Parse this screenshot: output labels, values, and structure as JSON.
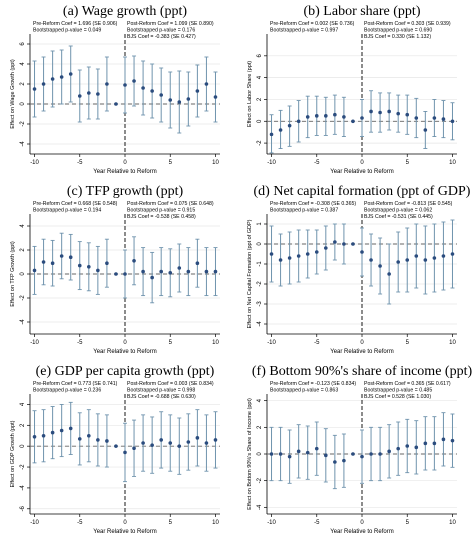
{
  "colors": {
    "marker": "#2b4c7e",
    "errorbar": "#6f93ad",
    "axis": "#000000",
    "grid": "#e6e6e6",
    "zero_line": "#666666",
    "reform_line": "#000000",
    "background": "#ffffff"
  },
  "chart_data": [
    {
      "type": "scatter",
      "title": "(a) Wage growth (ppt)",
      "xlabel": "Year Relative to Reform",
      "ylabel": "Effect on Wage Growth (ppt)",
      "xlim": [
        -10.5,
        10.5
      ],
      "ylim": [
        -5,
        7
      ],
      "xticks": [
        -10,
        -5,
        0,
        5,
        10
      ],
      "yticks": [
        -4,
        -2,
        0,
        2,
        4,
        6
      ],
      "grid": true,
      "reform_line_x": 0,
      "annotations": {
        "pre_coef": "Pre-Reform Coef = 1.696 (SE 0.906)",
        "pre_p": "Bootstrapped p-value = 0.049",
        "post_coef": "Post-Reform Coef = 1.099 (SE 0.890)",
        "post_p": "Bootstrapped p-value = 0.176",
        "bjs": "BJS Coef = -0.383 (SE 0.427)"
      },
      "x": [
        -10,
        -9,
        -8,
        -7,
        -6,
        -5,
        -4,
        -3,
        -2,
        -1,
        0,
        1,
        2,
        3,
        4,
        5,
        6,
        7,
        8,
        9,
        10
      ],
      "y": [
        1.5,
        2.0,
        2.5,
        2.7,
        3.0,
        0.8,
        1.1,
        1.0,
        2.0,
        0.0,
        1.9,
        2.3,
        1.6,
        1.3,
        0.9,
        0.4,
        0.2,
        0.5,
        1.3,
        2.0,
        0.7
      ],
      "lo": [
        -1.3,
        -0.7,
        -0.3,
        0.0,
        0.2,
        -1.8,
        -1.5,
        -1.5,
        -0.7,
        0.0,
        -0.9,
        -0.2,
        -1.1,
        -1.4,
        -1.8,
        -2.4,
        -2.9,
        -2.2,
        -1.3,
        -0.7,
        -1.8
      ],
      "hi": [
        4.3,
        4.7,
        5.3,
        5.4,
        5.8,
        3.4,
        3.7,
        3.5,
        4.7,
        0.0,
        4.7,
        4.8,
        4.3,
        4.0,
        3.6,
        3.2,
        3.3,
        3.2,
        3.9,
        4.7,
        3.2
      ]
    },
    {
      "type": "scatter",
      "title": "(b) Labor share (ppt)",
      "xlabel": "Year Relative to Reform",
      "ylabel": "Effect on Labor Share (ppt)",
      "xlim": [
        -10.5,
        10.5
      ],
      "ylim": [
        -3,
        8
      ],
      "xticks": [
        -10,
        -5,
        0,
        5,
        10
      ],
      "yticks": [
        -2,
        0,
        2,
        4,
        6
      ],
      "grid": true,
      "reform_line_x": 0,
      "annotations": {
        "pre_coef": "Pre-Reform Coef = 0.002 (SE 0.736)",
        "pre_p": "Bootstrapped p-value = 0.997",
        "post_coef": "Post-Reform Coef = 0.303 (SE 0.939)",
        "post_p": "Bootstrapped p-value = 0.690",
        "bjs": "BJS Coef = 0.330 (SE 1.132)"
      },
      "x": [
        -10,
        -9,
        -8,
        -7,
        -6,
        -5,
        -4,
        -3,
        -2,
        -1,
        0,
        1,
        2,
        3,
        4,
        5,
        6,
        7,
        8,
        9,
        10
      ],
      "y": [
        -1.2,
        -0.8,
        -0.4,
        0.0,
        0.4,
        0.5,
        0.5,
        0.6,
        0.4,
        0.0,
        0.3,
        0.9,
        0.8,
        0.9,
        0.7,
        0.6,
        0.3,
        -0.8,
        0.3,
        0.2,
        0.0
      ],
      "lo": [
        -2.9,
        -2.5,
        -2.3,
        -1.9,
        -1.5,
        -1.3,
        -1.3,
        -1.2,
        -1.4,
        0.0,
        -1.4,
        -1.0,
        -1.0,
        -0.8,
        -1.0,
        -1.2,
        -1.5,
        -2.5,
        -1.4,
        -1.5,
        -1.7
      ],
      "hi": [
        0.6,
        1.0,
        1.4,
        1.9,
        2.3,
        2.3,
        2.2,
        2.4,
        2.2,
        0.0,
        2.0,
        2.8,
        2.6,
        2.6,
        2.4,
        2.4,
        2.1,
        0.9,
        2.0,
        1.9,
        1.7
      ]
    },
    {
      "type": "scatter",
      "title": "(c) TFP growth (ppt)",
      "xlabel": "Year Relative to Reform",
      "ylabel": "Effect on TFP Growth (ppt)",
      "xlim": [
        -10.5,
        10.5
      ],
      "ylim": [
        -5,
        5
      ],
      "xticks": [
        -10,
        -5,
        0,
        5,
        10
      ],
      "yticks": [
        -4,
        -2,
        0,
        2,
        4
      ],
      "grid": true,
      "reform_line_x": 0,
      "annotations": {
        "pre_coef": "Pre-Reform Coef = 0.668 (SE 0.548)",
        "pre_p": "Bootstrapped p-value = 0.194",
        "post_coef": "Post-Reform Coef = 0.075 (SE 0.648)",
        "post_p": "Bootstrapped p-value = 0.915",
        "bjs": "BJS Coef = -0.538 (SE 0.458)"
      },
      "x": [
        -10,
        -9,
        -8,
        -7,
        -6,
        -5,
        -4,
        -3,
        -2,
        -1,
        0,
        1,
        2,
        3,
        4,
        5,
        6,
        7,
        8,
        9,
        10
      ],
      "y": [
        0.3,
        1.0,
        0.9,
        1.5,
        1.4,
        0.7,
        0.6,
        0.3,
        0.9,
        0.0,
        0.0,
        1.1,
        0.2,
        -0.3,
        0.2,
        0.1,
        0.5,
        0.2,
        0.9,
        0.2,
        0.2
      ],
      "lo": [
        -1.7,
        -0.9,
        -1.0,
        -0.4,
        -0.5,
        -1.3,
        -1.4,
        -1.7,
        -1.1,
        0.0,
        -2.0,
        -0.9,
        -1.8,
        -2.4,
        -1.8,
        -1.9,
        -1.5,
        -1.8,
        -1.1,
        -1.8,
        -1.8
      ],
      "hi": [
        2.3,
        2.9,
        2.8,
        3.4,
        3.3,
        2.7,
        2.6,
        2.3,
        2.9,
        0.0,
        2.0,
        3.1,
        2.2,
        1.8,
        2.2,
        2.1,
        2.5,
        2.2,
        2.9,
        2.2,
        2.2
      ]
    },
    {
      "type": "scatter",
      "title": "(d) Net capital formation (ppt of GDP)",
      "xlabel": "Year Relative to Reform",
      "ylabel": "Effect on Net Capital Formation (ppt of GDP)",
      "xlim": [
        -10.5,
        10.5
      ],
      "ylim": [
        -4.5,
        1.5
      ],
      "xticks": [
        -10,
        -5,
        0,
        5,
        10
      ],
      "yticks": [
        -4,
        -3,
        -2,
        -1,
        0,
        1
      ],
      "grid": true,
      "reform_line_x": 0,
      "annotations": {
        "pre_coef": "Pre-Reform Coef = -0.308 (SE 0.365)",
        "pre_p": "Bootstrapped p-value = 0.387",
        "post_coef": "Post-Reform Coef = -0.813 (SE 0.545)",
        "post_p": "Bootstrapped p-value = 0.062",
        "bjs": "BJS Coef = -0.531 (SE 0.445)"
      },
      "x": [
        -10,
        -9,
        -8,
        -7,
        -6,
        -5,
        -4,
        -3,
        -2,
        -1,
        0,
        1,
        2,
        3,
        4,
        5,
        6,
        7,
        8,
        9,
        10
      ],
      "y": [
        -0.5,
        -0.8,
        -0.7,
        -0.6,
        -0.5,
        -0.4,
        -0.2,
        0.1,
        0.0,
        0.0,
        -0.4,
        -0.8,
        -1.1,
        -1.5,
        -0.9,
        -0.8,
        -0.6,
        -0.8,
        -0.7,
        -0.6,
        -0.5
      ],
      "lo": [
        -1.9,
        -2.1,
        -2.0,
        -1.9,
        -1.7,
        -1.5,
        -1.3,
        -0.8,
        -1.0,
        0.0,
        -1.6,
        -2.1,
        -2.5,
        -3.0,
        -2.4,
        -2.4,
        -2.2,
        -2.5,
        -2.4,
        -2.3,
        -2.2
      ],
      "hi": [
        0.9,
        0.5,
        0.6,
        0.7,
        0.7,
        0.7,
        0.9,
        1.0,
        1.0,
        0.0,
        0.8,
        0.5,
        0.3,
        0.0,
        0.6,
        0.8,
        1.0,
        0.9,
        1.0,
        1.1,
        1.2
      ]
    },
    {
      "type": "scatter",
      "title": "(e) GDP per capita growth (ppt)",
      "xlabel": "Year Relative to Reform",
      "ylabel": "Effect on GDP Growth (ppt)",
      "xlim": [
        -10.5,
        10.5
      ],
      "ylim": [
        -6.5,
        5
      ],
      "xticks": [
        -10,
        -5,
        0,
        5,
        10
      ],
      "yticks": [
        -6,
        -4,
        -2,
        0,
        2,
        4
      ],
      "grid": true,
      "reform_line_x": 0,
      "annotations": {
        "pre_coef": "Pre-Reform Coef = 0.773 (SE 0.741)",
        "pre_p": "Bootstrapped p-value = 0.236",
        "post_coef": "Post-Reform Coef = 0.003 (SE 0.834)",
        "post_p": "Bootstrapped p-value = 0.998",
        "bjs": "BJS Coef = -0.688 (SE 0.630)"
      },
      "x": [
        -10,
        -9,
        -8,
        -7,
        -6,
        -5,
        -4,
        -3,
        -2,
        -1,
        0,
        1,
        2,
        3,
        4,
        5,
        6,
        7,
        8,
        9,
        10
      ],
      "y": [
        0.9,
        1.0,
        1.3,
        1.5,
        1.7,
        0.7,
        1.0,
        0.6,
        0.5,
        0.0,
        -0.6,
        -0.2,
        0.3,
        0.1,
        0.6,
        0.3,
        0.0,
        0.4,
        0.8,
        0.3,
        0.6
      ],
      "lo": [
        -1.6,
        -1.5,
        -1.2,
        -1.0,
        -0.8,
        -1.8,
        -1.5,
        -1.9,
        -2.0,
        0.0,
        -3.4,
        -2.9,
        -2.4,
        -2.6,
        -2.1,
        -2.4,
        -2.7,
        -2.3,
        -1.9,
        -2.4,
        -2.1
      ],
      "hi": [
        3.4,
        3.5,
        3.8,
        4.0,
        4.2,
        3.2,
        3.5,
        3.1,
        3.0,
        0.0,
        2.2,
        2.5,
        3.0,
        2.8,
        3.3,
        3.0,
        2.7,
        3.1,
        3.5,
        3.0,
        3.3
      ]
    },
    {
      "type": "scatter",
      "title": "(f) Bottom 90%'s share of income (ppt)",
      "xlabel": "Year Relative to Reform",
      "ylabel": "Effect on Bottom 90%'s Share of Income (ppt)",
      "xlim": [
        -10.5,
        10.5
      ],
      "ylim": [
        -4.5,
        4.5
      ],
      "xticks": [
        -10,
        -5,
        0,
        5,
        10
      ],
      "yticks": [
        -4,
        -2,
        0,
        2,
        4
      ],
      "grid": true,
      "reform_line_x": 0,
      "annotations": {
        "pre_coef": "Pre-Reform Coef = -0.123 (SE 0.834)",
        "pre_p": "Bootstrapped p-value = 0.863",
        "post_coef": "Post-Reform Coef = 0.365 (SE 0.617)",
        "post_p": "Bootstrapped p-value = 0.485",
        "bjs": "BJS Coef = 0.528 (SE 1.030)"
      },
      "x": [
        -10,
        -9,
        -8,
        -7,
        -6,
        -5,
        -4,
        -3,
        -2,
        -1,
        0,
        1,
        2,
        3,
        4,
        5,
        6,
        7,
        8,
        9,
        10
      ],
      "y": [
        0.0,
        0.0,
        -0.2,
        0.2,
        0.1,
        0.4,
        -0.1,
        -0.6,
        -0.5,
        0.0,
        -0.2,
        0.0,
        0.0,
        0.2,
        0.4,
        0.6,
        0.5,
        0.8,
        0.8,
        1.1,
        1.0
      ],
      "lo": [
        -2.0,
        -2.0,
        -2.2,
        -1.8,
        -1.9,
        -1.6,
        -2.1,
        -2.6,
        -2.5,
        0.0,
        -2.2,
        -2.0,
        -2.0,
        -1.8,
        -1.6,
        -1.4,
        -1.5,
        -1.2,
        -1.2,
        -0.9,
        -1.0
      ],
      "hi": [
        2.0,
        2.0,
        1.8,
        2.2,
        2.1,
        2.4,
        1.9,
        1.4,
        1.5,
        0.0,
        1.8,
        2.0,
        2.0,
        2.2,
        2.4,
        2.6,
        2.5,
        2.8,
        2.8,
        3.1,
        3.0
      ]
    }
  ]
}
